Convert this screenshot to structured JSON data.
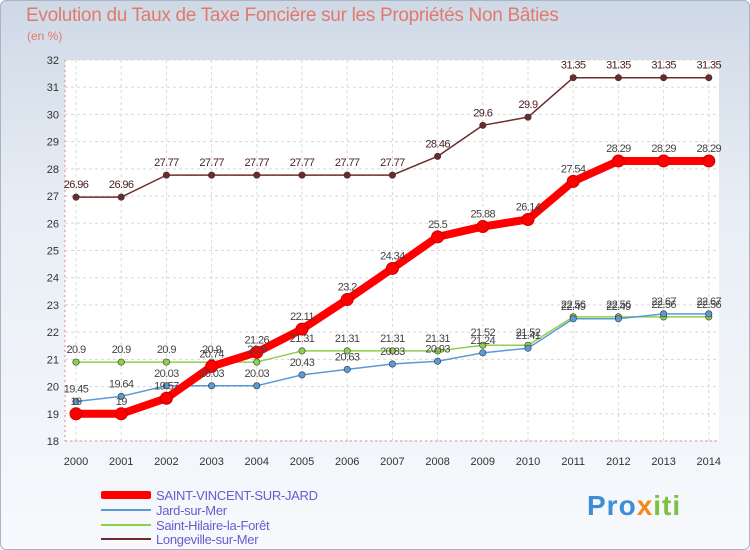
{
  "chart_data": {
    "type": "line",
    "title": "Evolution du Taux de Taxe Foncière sur les Propriétés Non Bâties",
    "subtitle": "(en %)",
    "xlabel": "",
    "ylabel": "",
    "categories": [
      "2000",
      "2001",
      "2002",
      "2003",
      "2004",
      "2005",
      "2006",
      "2007",
      "2008",
      "2009",
      "2010",
      "2011",
      "2012",
      "2013",
      "2014"
    ],
    "ylim": [
      18,
      32
    ],
    "yticks": [
      "18",
      "19",
      "20",
      "21",
      "22",
      "23",
      "24",
      "25",
      "26",
      "27",
      "28",
      "29",
      "30",
      "31",
      "32"
    ],
    "grid": true,
    "series": [
      {
        "name": "SAINT-VINCENT-SUR-JARD",
        "color": "#ff0000",
        "values": [
          19,
          19,
          19.57,
          20.74,
          21.26,
          22.11,
          23.2,
          24.34,
          25.5,
          25.88,
          26.14,
          27.54,
          28.29,
          28.29,
          28.29
        ],
        "labels": [
          "19",
          "19",
          "19.57",
          "20.74",
          "21.26",
          "22.11",
          "23.2",
          "24.34",
          "25.5",
          "25.88",
          "26.14",
          "27.54",
          "28.29",
          "28.29",
          "28.29"
        ]
      },
      {
        "name": "Jard-sur-Mer",
        "color": "#5b9bd5",
        "values": [
          19.45,
          19.64,
          20.03,
          20.03,
          20.03,
          20.43,
          20.63,
          20.83,
          20.93,
          21.24,
          21.41,
          22.49,
          22.49,
          22.67,
          22.67
        ],
        "labels": [
          "19.45",
          "19.64",
          "20.03",
          "20.03",
          "20.03",
          "20.43",
          "20.63",
          "20.83",
          "20.93",
          "21.24",
          "21.41",
          "22.49",
          "22.49",
          "22.67",
          "22.67"
        ]
      },
      {
        "name": "Saint-Hilaire-la-Forêt",
        "color": "#8ed04a",
        "values": [
          20.9,
          20.9,
          20.9,
          20.9,
          20.9,
          21.31,
          21.31,
          21.31,
          21.31,
          21.52,
          21.52,
          22.56,
          22.56,
          22.56,
          22.56
        ],
        "labels": [
          "20.9",
          "20.9",
          "20.9",
          "20.9",
          "20.9",
          "21.31",
          "21.31",
          "21.31",
          "21.31",
          "21.52",
          "21.52",
          "22.56",
          "22.56",
          "22.56",
          "22.56"
        ]
      },
      {
        "name": "Longeville-sur-Mer",
        "color": "#6e2b2b",
        "values": [
          26.96,
          26.96,
          27.77,
          27.77,
          27.77,
          27.77,
          27.77,
          27.77,
          28.46,
          29.6,
          29.9,
          31.35,
          31.35,
          31.35,
          31.35
        ],
        "labels": [
          "26.96",
          "26.96",
          "27.77",
          "27.77",
          "27.77",
          "27.77",
          "27.77",
          "27.77",
          "28.46",
          "29.6",
          "29.9",
          "31.35",
          "31.35",
          "31.35",
          "31.35"
        ]
      }
    ]
  },
  "brand": {
    "logo_p1": "Pro",
    "logo_x": "x",
    "logo_p2": "iti"
  }
}
